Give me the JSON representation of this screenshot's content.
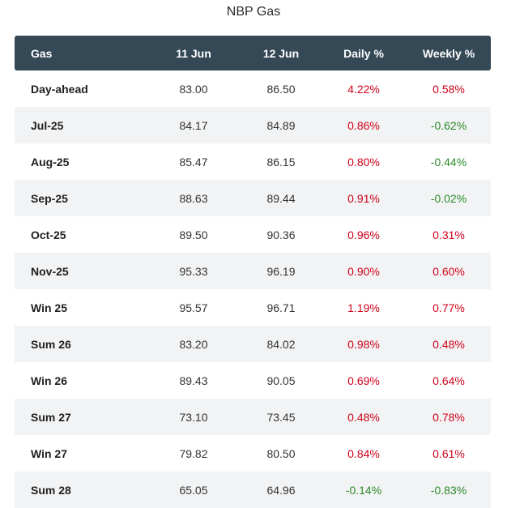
{
  "title": "NBP Gas",
  "colors": {
    "header_bg": "#344856",
    "stripe_bg": "#f2f3f4",
    "up": "#d0021b",
    "down": "#2a8a2a"
  },
  "table": {
    "headers": [
      "Gas",
      "11 Jun",
      "12 Jun",
      "Daily %",
      "Weekly %"
    ],
    "rows": [
      {
        "name": "Day-ahead",
        "jun11": "83.00",
        "jun12": "86.50",
        "daily": "4.22%",
        "weekly": "0.58%"
      },
      {
        "name": "Jul-25",
        "jun11": "84.17",
        "jun12": "84.89",
        "daily": "0.86%",
        "weekly": "-0.62%"
      },
      {
        "name": "Aug-25",
        "jun11": "85.47",
        "jun12": "86.15",
        "daily": "0.80%",
        "weekly": "-0.44%"
      },
      {
        "name": "Sep-25",
        "jun11": "88.63",
        "jun12": "89.44",
        "daily": "0.91%",
        "weekly": "-0.02%"
      },
      {
        "name": "Oct-25",
        "jun11": "89.50",
        "jun12": "90.36",
        "daily": "0.96%",
        "weekly": "0.31%"
      },
      {
        "name": "Nov-25",
        "jun11": "95.33",
        "jun12": "96.19",
        "daily": "0.90%",
        "weekly": "0.60%"
      },
      {
        "name": "Win 25",
        "jun11": "95.57",
        "jun12": "96.71",
        "daily": "1.19%",
        "weekly": "0.77%"
      },
      {
        "name": "Sum 26",
        "jun11": "83.20",
        "jun12": "84.02",
        "daily": "0.98%",
        "weekly": "0.48%"
      },
      {
        "name": "Win 26",
        "jun11": "89.43",
        "jun12": "90.05",
        "daily": "0.69%",
        "weekly": "0.64%"
      },
      {
        "name": "Sum 27",
        "jun11": "73.10",
        "jun12": "73.45",
        "daily": "0.48%",
        "weekly": "0.78%"
      },
      {
        "name": "Win 27",
        "jun11": "79.82",
        "jun12": "80.50",
        "daily": "0.84%",
        "weekly": "0.61%"
      },
      {
        "name": "Sum 28",
        "jun11": "65.05",
        "jun12": "64.96",
        "daily": "-0.14%",
        "weekly": "-0.83%"
      }
    ]
  }
}
